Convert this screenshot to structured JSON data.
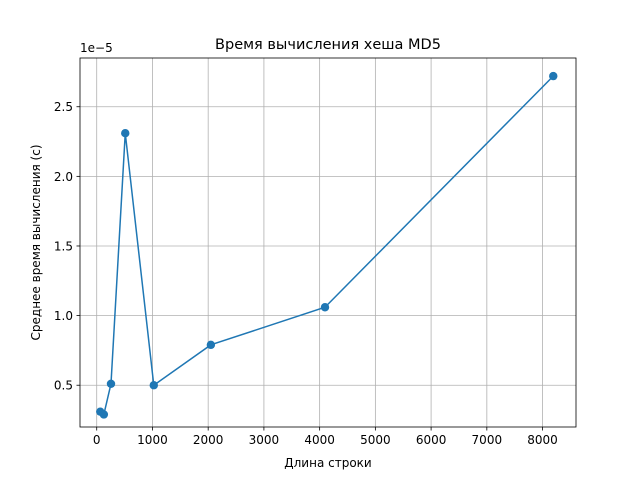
{
  "chart_data": {
    "type": "line",
    "title": "Время вычисления хеша MD5",
    "xlabel": "Длина строки",
    "ylabel": "Среднее время вычисления (с)",
    "y_offset_label": "1e−5",
    "xlim": [
      -300,
      8600
    ],
    "ylim": [
      2e-06,
      2.85e-05
    ],
    "x_ticks": [
      0,
      1000,
      2000,
      3000,
      4000,
      5000,
      6000,
      7000,
      8000
    ],
    "x_tick_labels": [
      "0",
      "1000",
      "2000",
      "3000",
      "4000",
      "5000",
      "6000",
      "7000",
      "8000"
    ],
    "y_ticks": [
      5e-06,
      1e-05,
      1.5e-05,
      2e-05,
      2.5e-05
    ],
    "y_tick_labels": [
      "0.5",
      "1.0",
      "1.5",
      "2.0",
      "2.5"
    ],
    "grid": true,
    "series": [
      {
        "color": "#1f77b4",
        "x": [
          64,
          128,
          256,
          512,
          1024,
          2048,
          4096,
          8192
        ],
        "y": [
          3.1e-06,
          2.9e-06,
          5.1e-06,
          2.31e-05,
          5e-06,
          7.9e-06,
          1.06e-05,
          2.72e-05
        ]
      }
    ]
  }
}
